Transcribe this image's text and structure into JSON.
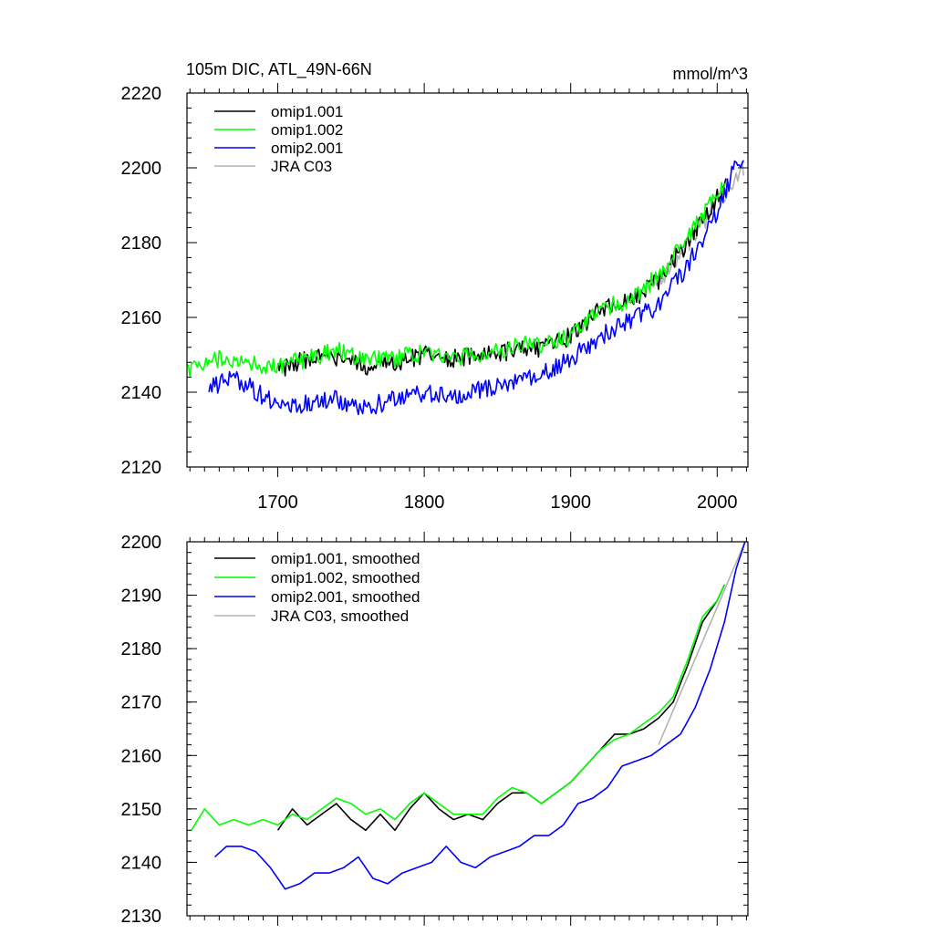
{
  "colors": {
    "omip1_001": "#000000",
    "omip1_002": "#00ff00",
    "omip2_001": "#0000ff",
    "jra_c03": "#b3b3b3"
  },
  "chart_data": [
    {
      "type": "line",
      "title": "105m DIC, ATL_49N-66N",
      "units": "mmol/m^3",
      "xlim": [
        1638,
        2021
      ],
      "ylim": [
        2120,
        2220
      ],
      "x_ticks": [
        1700,
        1800,
        1900,
        2000
      ],
      "x_tick_labels": [
        "1700",
        "1800",
        "1900",
        "2000"
      ],
      "y_ticks": [
        2120,
        2140,
        2160,
        2180,
        2200,
        2220
      ],
      "y_tick_labels": [
        "2120",
        "2140",
        "2160",
        "2180",
        "2200",
        "2220"
      ],
      "legend_position": "top-left",
      "noise": 2.5,
      "series": [
        {
          "name": "omip1.001",
          "color_key": "omip1_001",
          "x_start": 1700,
          "x_end": 2006,
          "x": [
            1700,
            1720,
            1740,
            1760,
            1780,
            1800,
            1820,
            1840,
            1860,
            1880,
            1900,
            1920,
            1940,
            1960,
            1980,
            2000,
            2006
          ],
          "y": [
            2146,
            2149,
            2149,
            2147,
            2148,
            2150,
            2149,
            2150,
            2151,
            2152,
            2155,
            2162,
            2164,
            2170,
            2180,
            2192,
            2195
          ]
        },
        {
          "name": "omip1.002",
          "color_key": "omip1_002",
          "x_start": 1638,
          "x_end": 2006,
          "x": [
            1638,
            1660,
            1680,
            1700,
            1720,
            1740,
            1760,
            1780,
            1800,
            1820,
            1840,
            1860,
            1880,
            1900,
            1920,
            1940,
            1960,
            1980,
            2000,
            2006
          ],
          "y": [
            2146,
            2149,
            2148,
            2147,
            2149,
            2151,
            2149,
            2149,
            2151,
            2149,
            2150,
            2152,
            2153,
            2155,
            2162,
            2165,
            2171,
            2181,
            2193,
            2195
          ]
        },
        {
          "name": "omip2.001",
          "color_key": "omip2_001",
          "x_start": 1653,
          "x_end": 2018,
          "x": [
            1653,
            1670,
            1690,
            1705,
            1720,
            1740,
            1760,
            1780,
            1800,
            1820,
            1840,
            1860,
            1880,
            1900,
            1920,
            1940,
            1960,
            1980,
            2000,
            2012,
            2018
          ],
          "y": [
            2141,
            2144,
            2139,
            2136,
            2137,
            2138,
            2136,
            2138,
            2140,
            2139,
            2141,
            2143,
            2145,
            2149,
            2155,
            2159,
            2163,
            2174,
            2188,
            2200,
            2200
          ]
        },
        {
          "name": "JRA C03",
          "color_key": "jra_c03",
          "x_start": 1958,
          "x_end": 2018,
          "x": [
            1958,
            2018
          ],
          "y": [
            2168,
            2200
          ]
        }
      ]
    },
    {
      "type": "line",
      "title": "",
      "units": "",
      "xlim": [
        1638,
        2021
      ],
      "ylim": [
        2130,
        2200
      ],
      "x_ticks": [
        1700,
        1800,
        1900,
        2000
      ],
      "x_tick_labels": [],
      "y_ticks": [
        2130,
        2140,
        2150,
        2160,
        2170,
        2180,
        2190,
        2200
      ],
      "y_tick_labels": [
        "2130",
        "2140",
        "2150",
        "2160",
        "2170",
        "2180",
        "2190",
        "2200"
      ],
      "legend_position": "top-left",
      "noise": 0,
      "series": [
        {
          "name": "omip1.001, smoothed",
          "color_key": "omip1_001",
          "x_start": 1700,
          "x_end": 2005,
          "x": [
            1700,
            1710,
            1720,
            1730,
            1740,
            1750,
            1760,
            1770,
            1780,
            1790,
            1800,
            1810,
            1820,
            1830,
            1840,
            1850,
            1860,
            1870,
            1880,
            1890,
            1900,
            1910,
            1920,
            1930,
            1940,
            1950,
            1960,
            1970,
            1980,
            1990,
            2000,
            2005
          ],
          "y": [
            2146,
            2150,
            2147,
            2149,
            2151,
            2148,
            2146,
            2149,
            2146,
            2150,
            2153,
            2150,
            2148,
            2149,
            2148,
            2151,
            2153,
            2153,
            2151,
            2153,
            2155,
            2158,
            2161,
            2164,
            2164,
            2165,
            2167,
            2170,
            2177,
            2185,
            2189,
            2192
          ]
        },
        {
          "name": "omip1.002, smoothed",
          "color_key": "omip1_002",
          "x_start": 1641,
          "x_end": 2005,
          "x": [
            1641,
            1650,
            1660,
            1670,
            1680,
            1690,
            1700,
            1710,
            1720,
            1730,
            1740,
            1750,
            1760,
            1770,
            1780,
            1790,
            1800,
            1810,
            1820,
            1830,
            1840,
            1850,
            1860,
            1870,
            1880,
            1890,
            1900,
            1910,
            1920,
            1930,
            1940,
            1950,
            1960,
            1970,
            1980,
            1990,
            2000,
            2005
          ],
          "y": [
            2146,
            2150,
            2147,
            2148,
            2147,
            2148,
            2147,
            2149,
            2148,
            2150,
            2152,
            2151,
            2149,
            2150,
            2148,
            2151,
            2153,
            2151,
            2149,
            2149,
            2149,
            2152,
            2154,
            2153,
            2151,
            2153,
            2155,
            2158,
            2161,
            2163,
            2164,
            2166,
            2168,
            2171,
            2178,
            2186,
            2189,
            2192
          ]
        },
        {
          "name": "omip2.001, smoothed",
          "color_key": "omip2_001",
          "x_start": 1657,
          "x_end": 2019,
          "x": [
            1657,
            1665,
            1675,
            1685,
            1695,
            1705,
            1715,
            1725,
            1735,
            1745,
            1755,
            1765,
            1775,
            1785,
            1795,
            1805,
            1815,
            1825,
            1835,
            1845,
            1855,
            1865,
            1875,
            1885,
            1895,
            1905,
            1915,
            1925,
            1935,
            1945,
            1955,
            1965,
            1975,
            1985,
            1995,
            2005,
            2013,
            2019
          ],
          "y": [
            2141,
            2143,
            2143,
            2142,
            2139,
            2135,
            2136,
            2138,
            2138,
            2139,
            2141,
            2137,
            2136,
            2138,
            2139,
            2140,
            2143,
            2140,
            2139,
            2141,
            2142,
            2143,
            2145,
            2145,
            2147,
            2151,
            2152,
            2154,
            2158,
            2159,
            2160,
            2162,
            2164,
            2169,
            2176,
            2185,
            2195,
            2200
          ]
        },
        {
          "name": "JRA C03, smoothed",
          "color_key": "jra_c03",
          "x_start": 1960,
          "x_end": 2019,
          "x": [
            1960,
            2019
          ],
          "y": [
            2162,
            2200
          ]
        }
      ]
    }
  ]
}
